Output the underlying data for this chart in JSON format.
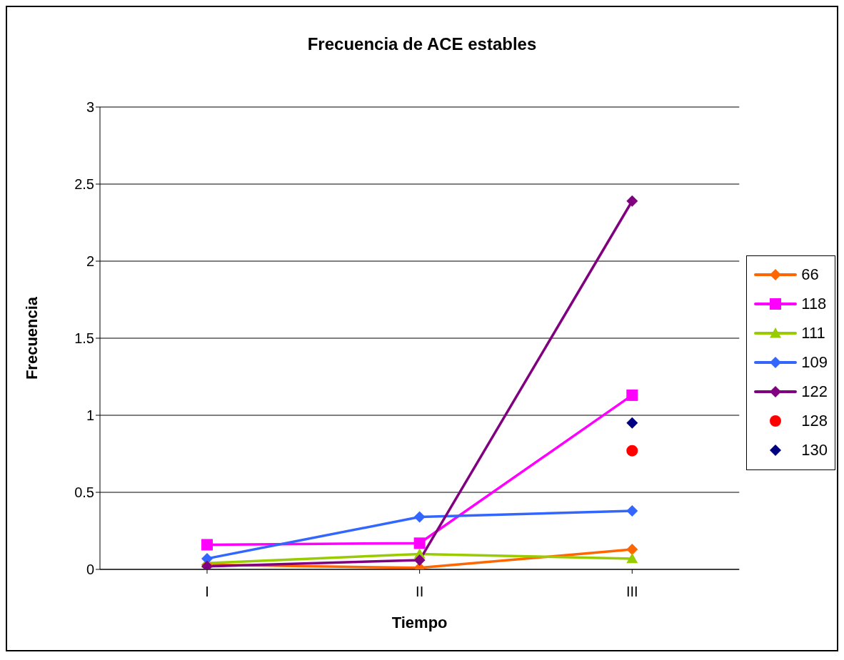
{
  "chart_data": {
    "type": "line",
    "title": "Frecuencia de ACE estables",
    "xlabel": "Tiempo",
    "ylabel": "Frecuencia",
    "categories": [
      "I",
      "II",
      "III"
    ],
    "series": [
      {
        "name": "66",
        "color": "#ff6600",
        "marker": "diamond",
        "values": [
          0.03,
          0.01,
          0.13
        ]
      },
      {
        "name": "118",
        "color": "#ff00ff",
        "marker": "square",
        "values": [
          0.16,
          0.17,
          1.13
        ]
      },
      {
        "name": "111",
        "color": "#99cc00",
        "marker": "triangle",
        "values": [
          0.04,
          0.1,
          0.07
        ]
      },
      {
        "name": "109",
        "color": "#3366ff",
        "marker": "diamond",
        "values": [
          0.07,
          0.34,
          0.38
        ]
      },
      {
        "name": "122",
        "color": "#800080",
        "marker": "diamond",
        "values": [
          0.02,
          0.06,
          2.39
        ]
      },
      {
        "name": "128",
        "type": "scatter",
        "color": "#ff0000",
        "marker": "circle",
        "values": [
          null,
          null,
          0.77
        ]
      },
      {
        "name": "130",
        "type": "scatter",
        "color": "#000080",
        "marker": "diamond",
        "values": [
          null,
          null,
          0.95
        ]
      }
    ],
    "ylim": [
      0,
      3
    ],
    "yticks": [
      0,
      0.5,
      1,
      1.5,
      2,
      2.5,
      3
    ],
    "grid": "y",
    "legend": "right"
  }
}
